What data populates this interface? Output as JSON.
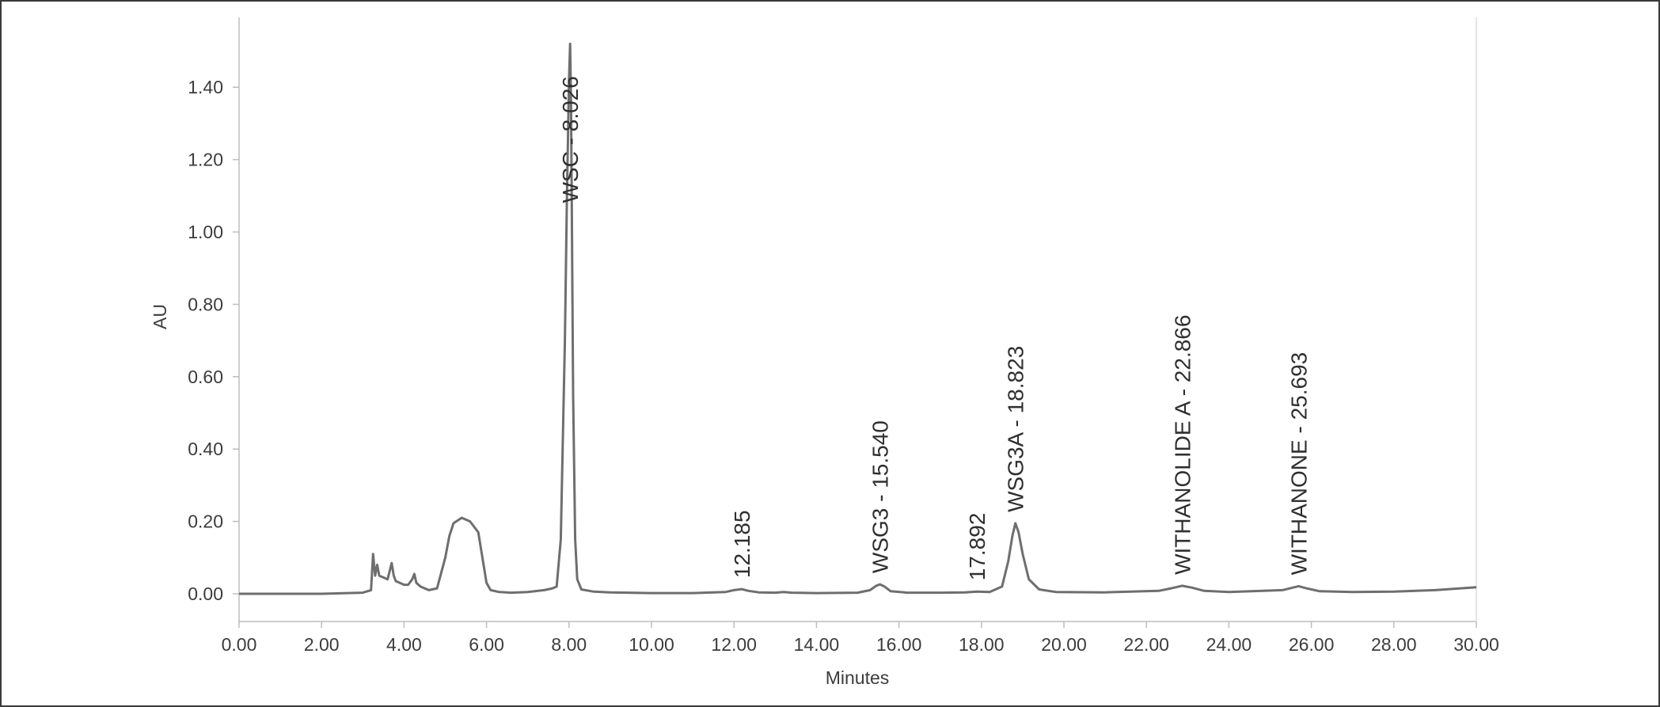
{
  "chart_data": {
    "type": "line",
    "title": "",
    "xlabel": "Minutes",
    "ylabel": "AU",
    "xlim": [
      0,
      30
    ],
    "ylim": [
      -0.08,
      1.55
    ],
    "grid": false,
    "legend": "none",
    "x_ticks": [
      "0.00",
      "2.00",
      "4.00",
      "6.00",
      "8.00",
      "10.00",
      "12.00",
      "14.00",
      "16.00",
      "18.00",
      "20.00",
      "22.00",
      "24.00",
      "26.00",
      "28.00",
      "30.00"
    ],
    "y_ticks": [
      "0.00",
      "0.20",
      "0.40",
      "0.60",
      "0.80",
      "1.00",
      "1.20",
      "1.40"
    ],
    "line_color": "#6e6e6e",
    "series": [
      {
        "x": [
          0.0,
          1.0,
          2.0,
          3.0,
          3.2,
          3.25,
          3.3,
          3.35,
          3.4,
          3.5,
          3.6,
          3.7,
          3.75,
          3.8,
          3.9,
          4.0,
          4.1,
          4.2,
          4.25,
          4.3,
          4.4,
          4.6,
          4.8,
          5.0,
          5.1,
          5.2,
          5.4,
          5.6,
          5.8,
          5.9,
          6.0,
          6.1,
          6.3,
          6.6,
          7.0,
          7.4,
          7.6,
          7.7,
          7.8,
          7.9,
          7.95,
          8.0,
          8.026,
          8.05,
          8.1,
          8.15,
          8.2,
          8.3,
          8.6,
          9.0,
          10.0,
          11.0,
          11.8,
          12.0,
          12.185,
          12.35,
          12.6,
          13.0,
          13.2,
          13.4,
          14.0,
          15.0,
          15.3,
          15.45,
          15.54,
          15.65,
          15.8,
          16.2,
          17.0,
          17.6,
          17.892,
          18.2,
          18.5,
          18.65,
          18.75,
          18.823,
          18.9,
          19.0,
          19.15,
          19.4,
          19.8,
          21.0,
          22.3,
          22.6,
          22.866,
          23.1,
          23.4,
          24.0,
          25.3,
          25.55,
          25.693,
          25.85,
          26.2,
          27.0,
          28.0,
          29.0,
          30.0
        ],
        "y": [
          0.0,
          0.0,
          0.0,
          0.003,
          0.01,
          0.11,
          0.05,
          0.08,
          0.05,
          0.045,
          0.04,
          0.085,
          0.05,
          0.035,
          0.03,
          0.025,
          0.025,
          0.04,
          0.055,
          0.03,
          0.02,
          0.01,
          0.015,
          0.1,
          0.16,
          0.195,
          0.21,
          0.2,
          0.17,
          0.1,
          0.03,
          0.01,
          0.005,
          0.003,
          0.005,
          0.01,
          0.015,
          0.02,
          0.15,
          0.7,
          1.1,
          1.42,
          1.52,
          1.35,
          0.55,
          0.15,
          0.04,
          0.012,
          0.006,
          0.004,
          0.002,
          0.002,
          0.005,
          0.01,
          0.013,
          0.008,
          0.004,
          0.003,
          0.005,
          0.003,
          0.002,
          0.003,
          0.01,
          0.022,
          0.026,
          0.02,
          0.007,
          0.003,
          0.003,
          0.004,
          0.006,
          0.005,
          0.02,
          0.09,
          0.16,
          0.195,
          0.17,
          0.11,
          0.04,
          0.012,
          0.005,
          0.004,
          0.008,
          0.015,
          0.022,
          0.017,
          0.008,
          0.005,
          0.01,
          0.017,
          0.021,
          0.016,
          0.007,
          0.005,
          0.006,
          0.01,
          0.018
        ]
      }
    ],
    "peak_labels": [
      {
        "text": "WSC - 8.026",
        "x": 8.026,
        "y": 1.52
      },
      {
        "text": "12.185",
        "x": 12.185,
        "y": 0.013
      },
      {
        "text": "WSG3 - 15.540",
        "x": 15.54,
        "y": 0.026
      },
      {
        "text": "17.892",
        "x": 17.892,
        "y": 0.006
      },
      {
        "text": "WSG3A - 18.823",
        "x": 18.823,
        "y": 0.195
      },
      {
        "text": "WITHANOLIDE A - 22.866",
        "x": 22.866,
        "y": 0.022
      },
      {
        "text": "WITHANONE - 25.693",
        "x": 25.693,
        "y": 0.021
      }
    ]
  }
}
